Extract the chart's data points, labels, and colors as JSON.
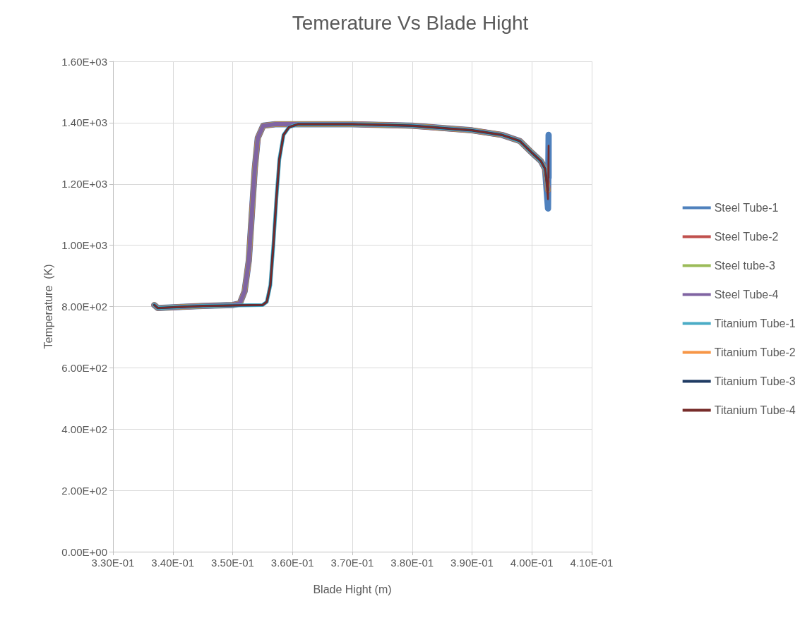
{
  "chart_data": {
    "type": "line",
    "title": "Temerature Vs Blade Hight",
    "xlabel": "Blade Hight (m)",
    "ylabel": "Temperature  (K)",
    "xlim": [
      0.33,
      0.41
    ],
    "xticks": [
      {
        "value": 0.33,
        "label": "3.30E-01"
      },
      {
        "value": 0.34,
        "label": "3.40E-01"
      },
      {
        "value": 0.35,
        "label": "3.50E-01"
      },
      {
        "value": 0.36,
        "label": "3.60E-01"
      },
      {
        "value": 0.37,
        "label": "3.70E-01"
      },
      {
        "value": 0.38,
        "label": "3.80E-01"
      },
      {
        "value": 0.39,
        "label": "3.90E-01"
      },
      {
        "value": 0.4,
        "label": "4.00E-01"
      },
      {
        "value": 0.41,
        "label": "4.10E-01"
      }
    ],
    "ylim": [
      0,
      1600
    ],
    "yticks": [
      {
        "value": 0,
        "label": "0.00E+00"
      },
      {
        "value": 200,
        "label": "2.00E+02"
      },
      {
        "value": 400,
        "label": "4.00E+02"
      },
      {
        "value": 600,
        "label": "6.00E+02"
      },
      {
        "value": 800,
        "label": "8.00E+02"
      },
      {
        "value": 1000,
        "label": "1.00E+03"
      },
      {
        "value": 1200,
        "label": "1.20E+03"
      },
      {
        "value": 1400,
        "label": "1.40E+03"
      },
      {
        "value": 1600,
        "label": "1.60E+03"
      }
    ],
    "grid": true,
    "legend": "right",
    "marker": "none",
    "line_style": "solid",
    "series": [
      {
        "name": "Steel Tube-1",
        "color": "#4f81bd",
        "x": [
          0.3369,
          0.3375,
          0.345,
          0.35,
          0.3512,
          0.352,
          0.3527,
          0.3532,
          0.3537,
          0.3542,
          0.3551,
          0.3571,
          0.37,
          0.38,
          0.39,
          0.395,
          0.398,
          0.4001,
          0.4015,
          0.4022,
          0.4027,
          0.4028,
          0.4028
        ],
        "values": [
          805,
          795,
          802,
          805,
          810,
          850,
          950,
          1100,
          1250,
          1350,
          1390,
          1395,
          1395,
          1390,
          1375,
          1360,
          1340,
          1300,
          1275,
          1250,
          1120,
          1360,
          1220
        ]
      },
      {
        "name": "Steel Tube-2",
        "color": "#c0504d",
        "x": [
          0.3369,
          0.3375,
          0.345,
          0.35,
          0.3512,
          0.352,
          0.3527,
          0.3532,
          0.3537,
          0.3542,
          0.3551,
          0.3571,
          0.37,
          0.38,
          0.39,
          0.395,
          0.398,
          0.4001,
          0.4015,
          0.4022,
          0.4027
        ],
        "values": [
          805,
          795,
          802,
          805,
          810,
          850,
          950,
          1100,
          1250,
          1350,
          1390,
          1395,
          1395,
          1390,
          1375,
          1360,
          1340,
          1300,
          1275,
          1250,
          1180
        ]
      },
      {
        "name": "Steel tube-3",
        "color": "#9bbb59",
        "x": [
          0.3369,
          0.3375,
          0.345,
          0.35,
          0.3512,
          0.352,
          0.3527,
          0.3532,
          0.3537,
          0.3542,
          0.3551,
          0.3571,
          0.37,
          0.38,
          0.39,
          0.395,
          0.398,
          0.4001,
          0.4015,
          0.4022,
          0.4027
        ],
        "values": [
          805,
          795,
          802,
          805,
          810,
          850,
          950,
          1100,
          1250,
          1350,
          1390,
          1395,
          1395,
          1390,
          1375,
          1360,
          1340,
          1300,
          1275,
          1250,
          1180
        ]
      },
      {
        "name": "Steel Tube-4",
        "color": "#8064a2",
        "x": [
          0.3369,
          0.3375,
          0.345,
          0.35,
          0.3512,
          0.352,
          0.3527,
          0.3532,
          0.3537,
          0.3542,
          0.3551,
          0.3571,
          0.37,
          0.38,
          0.39,
          0.395,
          0.398,
          0.4001,
          0.4015,
          0.4022,
          0.4027
        ],
        "values": [
          805,
          795,
          802,
          805,
          810,
          850,
          950,
          1100,
          1250,
          1350,
          1390,
          1395,
          1395,
          1390,
          1375,
          1360,
          1340,
          1300,
          1275,
          1250,
          1180
        ]
      },
      {
        "name": "Titanium Tube-1",
        "color": "#4bacc6",
        "x": [
          0.3369,
          0.3375,
          0.345,
          0.355,
          0.3557,
          0.3563,
          0.3568,
          0.3573,
          0.3578,
          0.3585,
          0.3594,
          0.3609,
          0.37,
          0.38,
          0.39,
          0.395,
          0.398,
          0.4001,
          0.4015,
          0.4022,
          0.4027
        ],
        "values": [
          805,
          795,
          802,
          805,
          815,
          870,
          1000,
          1150,
          1280,
          1360,
          1385,
          1395,
          1395,
          1390,
          1375,
          1360,
          1340,
          1300,
          1275,
          1250,
          1180
        ]
      },
      {
        "name": "Titanium Tube-2",
        "color": "#f79646"
      },
      {
        "name": "Titanium Tube-3",
        "color": "#1f3b63",
        "x": [
          0.3369,
          0.3375,
          0.345,
          0.355,
          0.3557,
          0.3563,
          0.3568,
          0.3573,
          0.3578,
          0.3585,
          0.3594,
          0.3609,
          0.37,
          0.38,
          0.39,
          0.395,
          0.398,
          0.4001,
          0.4015,
          0.4022,
          0.4027
        ],
        "values": [
          805,
          795,
          802,
          805,
          815,
          870,
          1000,
          1150,
          1280,
          1360,
          1385,
          1395,
          1395,
          1390,
          1375,
          1360,
          1340,
          1300,
          1275,
          1250,
          1180
        ]
      },
      {
        "name": "Titanium Tube-4",
        "color": "#772c2a",
        "x": [
          0.3369,
          0.3375,
          0.345,
          0.355,
          0.3557,
          0.3563,
          0.3568,
          0.3573,
          0.3578,
          0.3585,
          0.3594,
          0.3609,
          0.37,
          0.38,
          0.39,
          0.395,
          0.398,
          0.4001,
          0.4015,
          0.4022,
          0.4027,
          0.4028,
          0.4028
        ],
        "values": [
          805,
          795,
          802,
          805,
          815,
          870,
          1000,
          1150,
          1280,
          1360,
          1385,
          1395,
          1395,
          1390,
          1375,
          1360,
          1340,
          1300,
          1275,
          1250,
          1150,
          1325,
          1220
        ]
      }
    ]
  }
}
